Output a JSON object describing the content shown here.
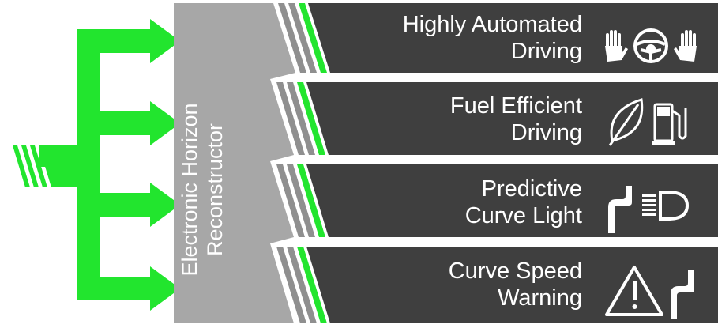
{
  "reconstructor": {
    "line1": "Electronic Horizon",
    "line2": "Reconstructor"
  },
  "colors": {
    "green": "#22e52e",
    "dark_panel": "#3f3f3f",
    "gray_column": "#a7a7a7",
    "stripe_gray": "#8f8f8f",
    "white": "#ffffff"
  },
  "functions": [
    {
      "line1": "Highly Automated",
      "line2": "Driving",
      "icons": [
        "hand-icon",
        "steering-wheel-icon",
        "hand-icon"
      ]
    },
    {
      "line1": "Fuel Efficient",
      "line2": "Driving",
      "icons": [
        "leaf-icon",
        "fuel-pump-icon"
      ]
    },
    {
      "line1": "Predictive",
      "line2": "Curve Light",
      "icons": [
        "curved-road-icon",
        "headlight-icon"
      ]
    },
    {
      "line1": "Curve Speed",
      "line2": "Warning",
      "icons": [
        "warning-triangle-icon",
        "curved-road-icon"
      ]
    }
  ]
}
